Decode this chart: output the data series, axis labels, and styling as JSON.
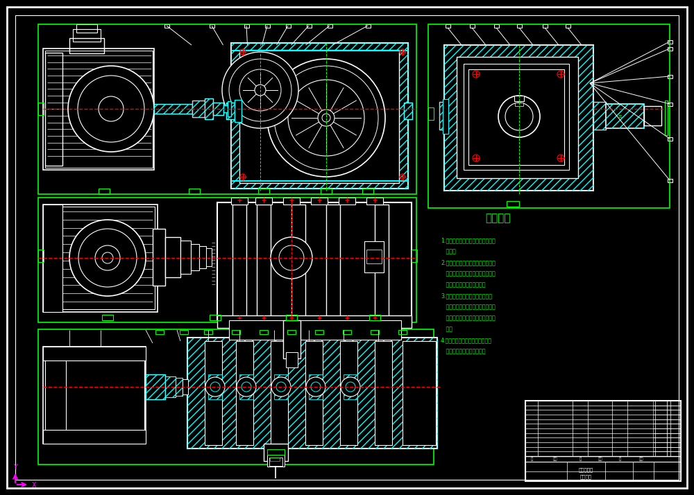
{
  "bg_color": "#000000",
  "white": "#ffffff",
  "green": "#00ff00",
  "cyan": "#00ffff",
  "red": "#ff0000",
  "magenta": "#ff00ff",
  "title": "技术要求",
  "tech_notes": [
    "1.滚动轴承装封后用手转动应灵活、",
    "   平稳。",
    "2.进入装配的零件及部件（包括外购",
    "   件、外协件），均必须具有检验部",
    "   门的合格证方能进行装配。",
    "3.零件在装配前必须清理和清洗干",
    "   净，不得有毛刺、飞边、氧化皮、",
    "   锈蚀、切屑、油污、着色剂和灰尘",
    "   等。",
    "4.平键与轴上键槽两侧面应均匀接",
    "   触，其配合面不得有间隙。"
  ]
}
